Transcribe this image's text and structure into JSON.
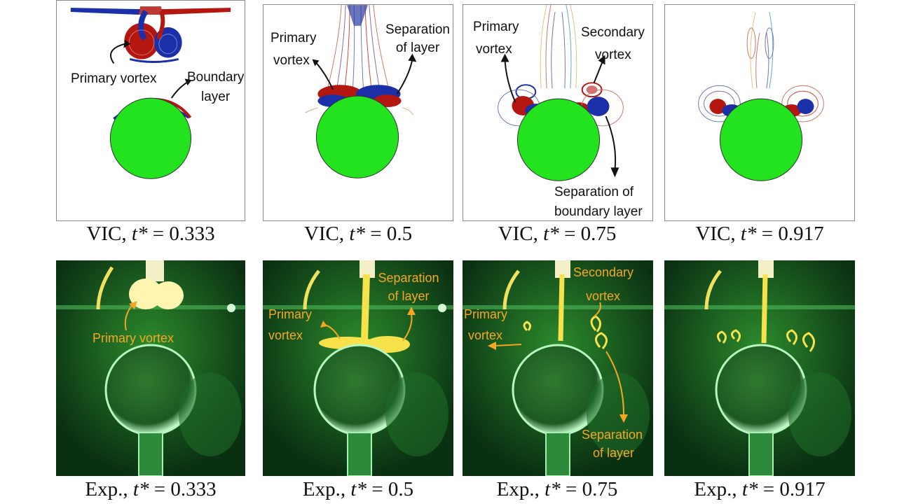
{
  "figure": {
    "sim_method": "VIC",
    "exp_method": "Exp.",
    "time_symbol": "t*",
    "equals": "=",
    "times": [
      "0.333",
      "0.5",
      "0.75",
      "0.917"
    ]
  },
  "annotations": {
    "primary_vortex_one_line": "Primary vortex",
    "primary": "Primary",
    "vortex": "vortex",
    "boundary": "Boundary",
    "layer": "layer",
    "separation": "Separation",
    "of_layer": "of layer",
    "secondary": "Secondary",
    "separation_of": "Separation  of",
    "boundary_layer": "boundary layer"
  },
  "colors": {
    "sphere_sim": "#22e31e",
    "vortex_red": "#b3170f",
    "vortex_blue": "#1b2fa8",
    "dye_yellow": "#f7e24c",
    "label_orange": "#f5a623",
    "exp_background": "#0b3a14"
  }
}
